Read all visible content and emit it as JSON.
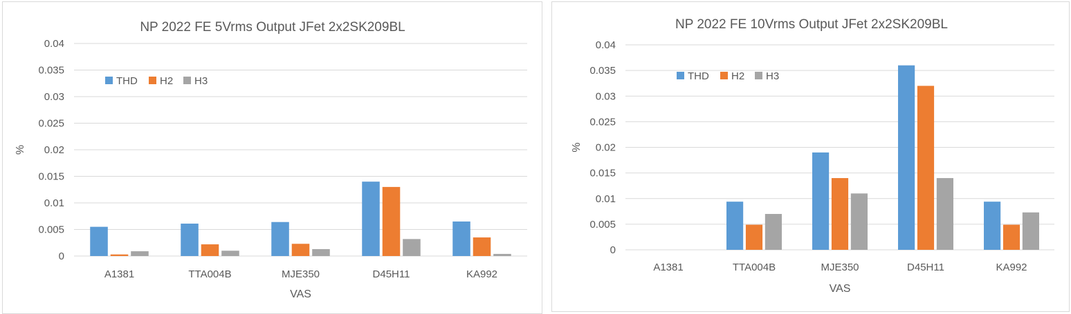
{
  "chart_data": [
    {
      "type": "bar",
      "title": "NP 2022 FE 5Vrms Output JFet 2x2SK209BL",
      "xlabel": "VAS",
      "ylabel": "%",
      "ylim": [
        0,
        0.04
      ],
      "yticks": [
        "0",
        "0.005",
        "0.01",
        "0.015",
        "0.02",
        "0.025",
        "0.03",
        "0.035",
        "0.04"
      ],
      "categories": [
        "A1381",
        "TTA004B",
        "MJE350",
        "D45H11",
        "KA992"
      ],
      "series": [
        {
          "name": "THD",
          "values": [
            0.0055,
            0.0061,
            0.0064,
            0.014,
            0.0065
          ]
        },
        {
          "name": "H2",
          "values": [
            0.0003,
            0.0022,
            0.0023,
            0.013,
            0.0035
          ]
        },
        {
          "name": "H3",
          "values": [
            0.0009,
            0.001,
            0.0013,
            0.0032,
            0.0004
          ]
        }
      ],
      "legend": "top-left",
      "grid": true
    },
    {
      "type": "bar",
      "title": "NP 2022 FE 10Vrms Output JFet 2x2SK209BL",
      "xlabel": "VAS",
      "ylabel": "%",
      "ylim": [
        0,
        0.04
      ],
      "yticks": [
        "0",
        "0.005",
        "0.01",
        "0.015",
        "0.02",
        "0.025",
        "0.03",
        "0.035",
        "0.04"
      ],
      "categories": [
        "A1381",
        "TTA004B",
        "MJE350",
        "D45H11",
        "KA992"
      ],
      "series": [
        {
          "name": "THD",
          "values": [
            0,
            0.0094,
            0.019,
            0.036,
            0.0094
          ]
        },
        {
          "name": "H2",
          "values": [
            0,
            0.0049,
            0.014,
            0.032,
            0.0049
          ]
        },
        {
          "name": "H3",
          "values": [
            0,
            0.007,
            0.011,
            0.014,
            0.0073
          ]
        }
      ],
      "legend": "top-left",
      "grid": true
    }
  ],
  "colors": {
    "THD": "#5b9bd5",
    "H2": "#ed7d31",
    "H3": "#a5a5a5",
    "grid": "#d9d9d9",
    "text": "#595959"
  }
}
